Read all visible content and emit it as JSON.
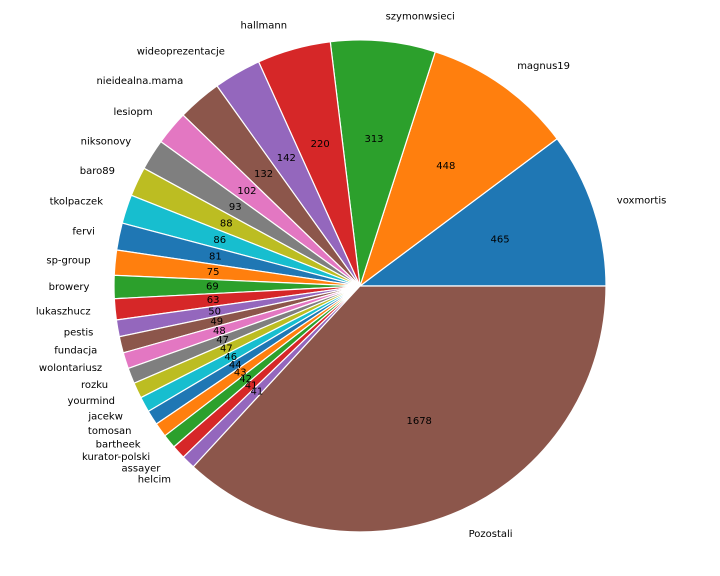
{
  "chart_data": {
    "type": "pie",
    "start_angle_deg": 0,
    "direction": "counterclockwise",
    "labels": [
      "voxmortis",
      "magnus19",
      "szymonwsieci",
      "hallmann",
      "wideoprezentacje",
      "nieidealna.mama",
      "lesiopm",
      "niksonovy",
      "baro89",
      "tkolpaczek",
      "fervi",
      "sp-group",
      "browery",
      "lukaszhucz",
      "pestis",
      "fundacja",
      "wolontariusz",
      "rozku",
      "yourmind",
      "jacekw",
      "tomosan",
      "bartheek",
      "kurator-polski",
      "assayer",
      "helcim",
      "Pozostali"
    ],
    "values": [
      465,
      448,
      313,
      220,
      142,
      132,
      102,
      93,
      88,
      86,
      81,
      75,
      69,
      63,
      50,
      49,
      48,
      47,
      47,
      46,
      44,
      43,
      42,
      41,
      41,
      1678
    ],
    "colors": [
      "#1f77b4",
      "#ff7f0e",
      "#2ca02c",
      "#d62728",
      "#9467bd",
      "#8c564b",
      "#e377c2",
      "#7f7f7f",
      "#bcbd22",
      "#17becf",
      "#1f77b4",
      "#ff7f0e",
      "#2ca02c",
      "#d62728",
      "#9467bd",
      "#8c564b",
      "#e377c2",
      "#7f7f7f",
      "#bcbd22",
      "#17becf",
      "#1f77b4",
      "#ff7f0e",
      "#2ca02c",
      "#d62728",
      "#9467bd",
      "#8c564b"
    ]
  }
}
